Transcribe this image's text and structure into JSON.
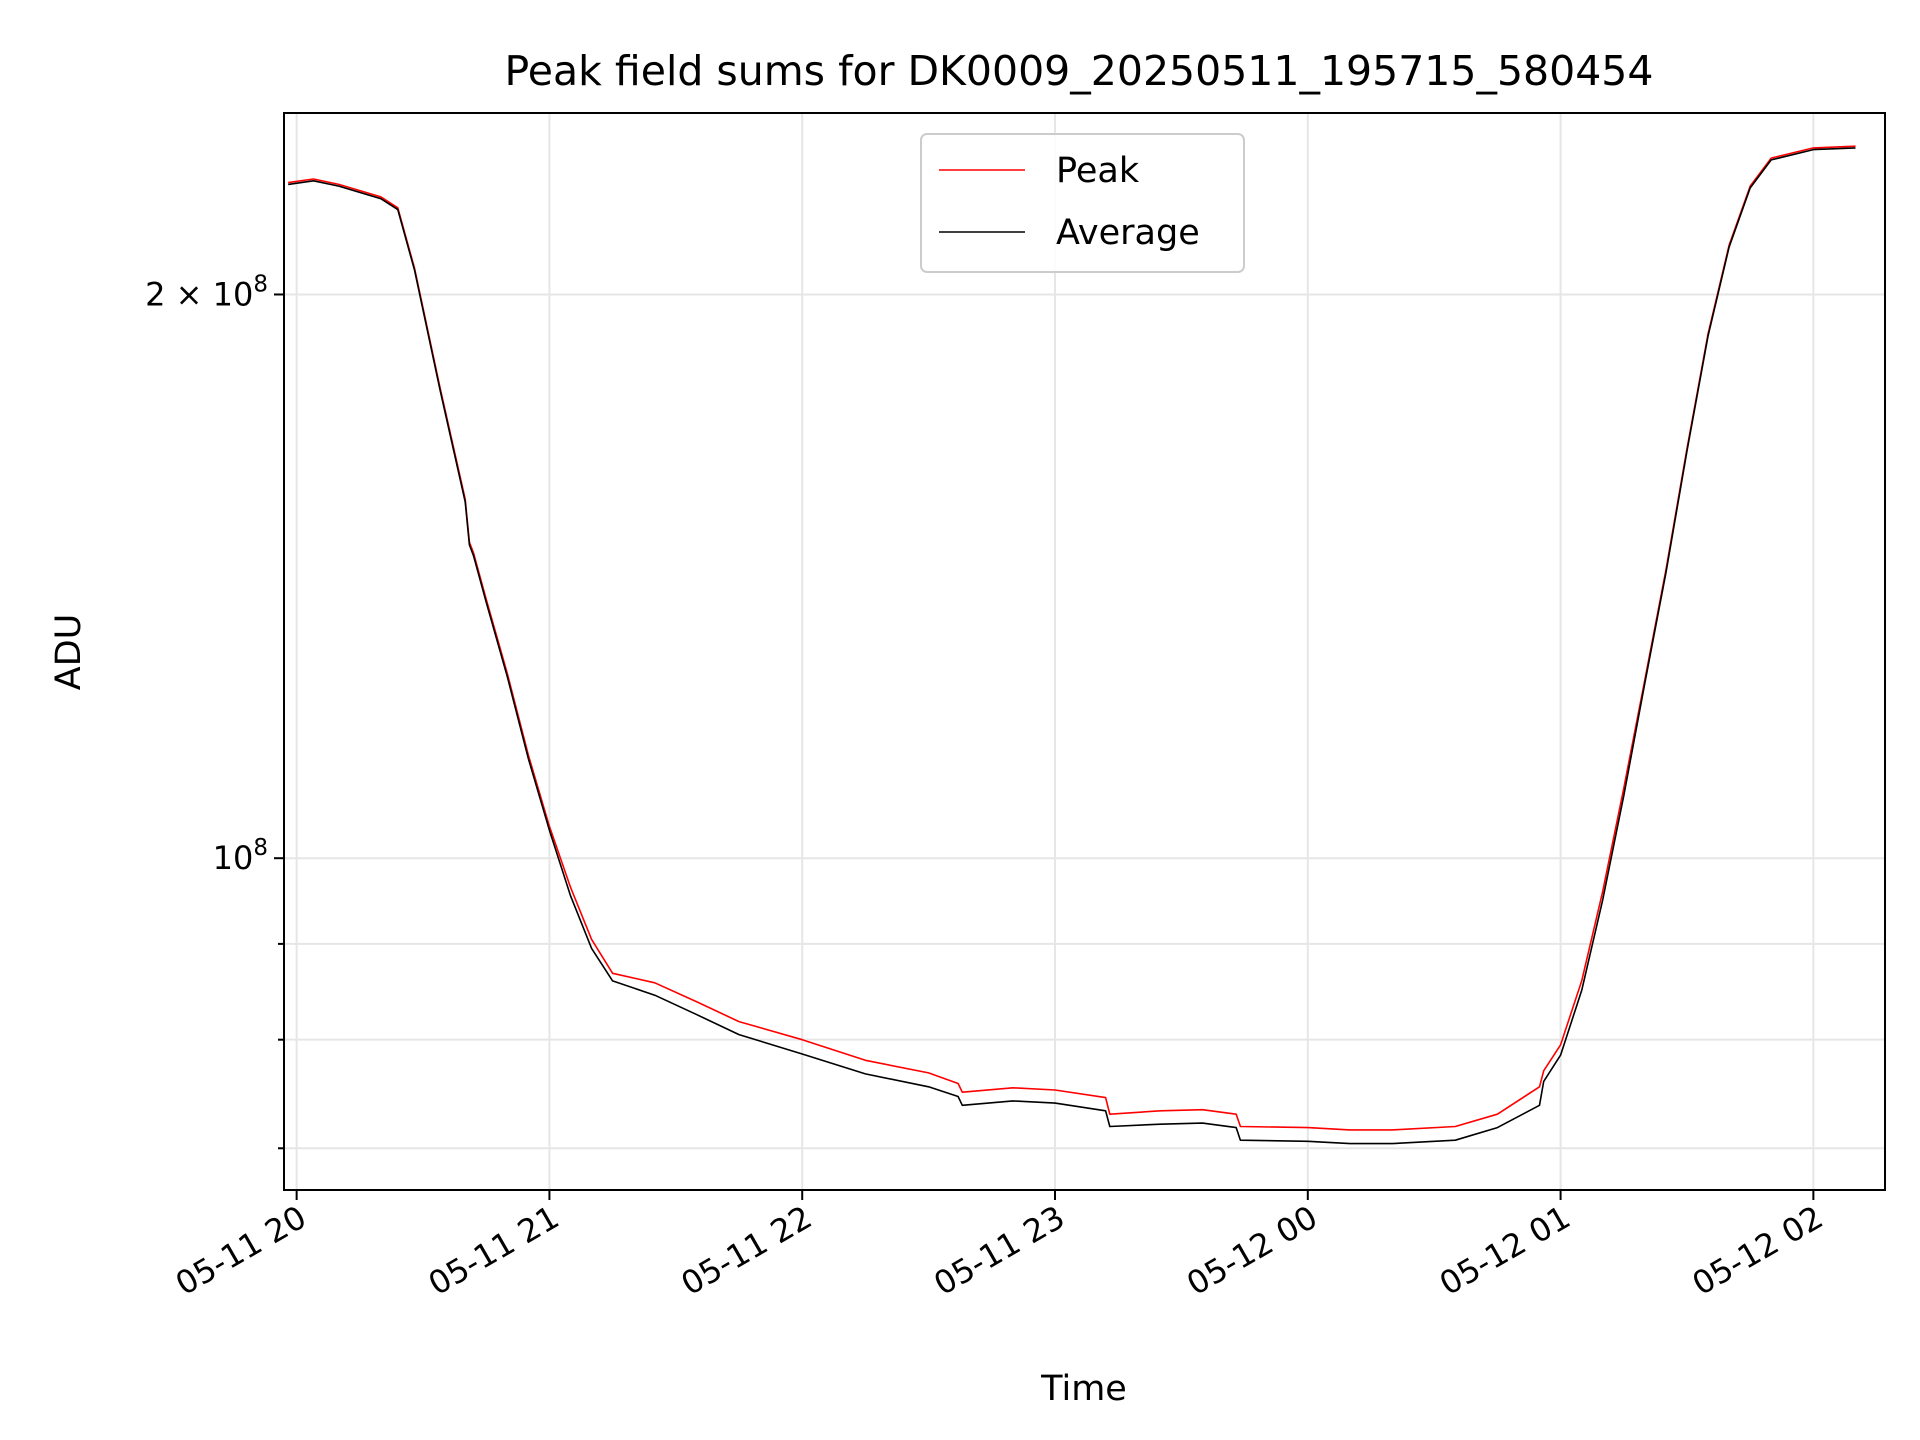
{
  "chart_data": {
    "type": "line",
    "title": "Peak field sums for DK0009_20250511_195715_580454",
    "xlabel": "Time",
    "ylabel": "ADU",
    "y_scale": "log",
    "ylim": [
      66500000,
      250000000
    ],
    "xlim": [
      "2025-05-11 19:57",
      "2025-05-12 02:17"
    ],
    "grid": true,
    "legend_position": "upper center",
    "x_ticks": [
      {
        "t": "2025-05-11 20:00",
        "label": "05-11 20"
      },
      {
        "t": "2025-05-11 21:00",
        "label": "05-11 21"
      },
      {
        "t": "2025-05-11 22:00",
        "label": "05-11 22"
      },
      {
        "t": "2025-05-11 23:00",
        "label": "05-11 23"
      },
      {
        "t": "2025-05-12 00:00",
        "label": "05-12 00"
      },
      {
        "t": "2025-05-12 01:00",
        "label": "05-12 01"
      },
      {
        "t": "2025-05-12 02:00",
        "label": "05-12 02"
      }
    ],
    "y_major_ticks": [
      {
        "value": 100000000,
        "base": "10",
        "exp": "8",
        "coef": ""
      },
      {
        "value": 200000000,
        "base": "10",
        "exp": "8",
        "coef": "2"
      }
    ],
    "y_minor_ticks": [
      70000000,
      80000000,
      90000000
    ],
    "series": [
      {
        "name": "Average",
        "color": "#000000",
        "points": [
          [
            "2025-05-11 19:58",
            229000000
          ],
          [
            "2025-05-11 20:04",
            230000000
          ],
          [
            "2025-05-11 20:10",
            228500000
          ],
          [
            "2025-05-11 20:20",
            225000000
          ],
          [
            "2025-05-11 20:24",
            222000000
          ],
          [
            "2025-05-11 20:28",
            206000000
          ],
          [
            "2025-05-11 20:34",
            178000000
          ],
          [
            "2025-05-11 20:40",
            155000000
          ],
          [
            "2025-05-11 20:41",
            147000000
          ],
          [
            "2025-05-11 20:42",
            145000000
          ],
          [
            "2025-05-11 20:45",
            137000000
          ],
          [
            "2025-05-11 20:50",
            125000000
          ],
          [
            "2025-05-11 20:55",
            113000000
          ],
          [
            "2025-05-11 21:00",
            103500000
          ],
          [
            "2025-05-11 21:05",
            95500000
          ],
          [
            "2025-05-11 21:10",
            89500000
          ],
          [
            "2025-05-11 21:15",
            86000000
          ],
          [
            "2025-05-11 21:25",
            84500000
          ],
          [
            "2025-05-11 21:35",
            82500000
          ],
          [
            "2025-05-11 21:45",
            80500000
          ],
          [
            "2025-05-11 22:00",
            78600000
          ],
          [
            "2025-05-11 22:15",
            76700000
          ],
          [
            "2025-05-11 22:30",
            75500000
          ],
          [
            "2025-05-11 22:37",
            74600000
          ],
          [
            "2025-05-11 22:38",
            73800000
          ],
          [
            "2025-05-11 22:50",
            74200000
          ],
          [
            "2025-05-11 23:00",
            74000000
          ],
          [
            "2025-05-11 23:12",
            73300000
          ],
          [
            "2025-05-11 23:13",
            71900000
          ],
          [
            "2025-05-11 23:25",
            72100000
          ],
          [
            "2025-05-11 23:35",
            72200000
          ],
          [
            "2025-05-11 23:43",
            71800000
          ],
          [
            "2025-05-11 23:44",
            70700000
          ],
          [
            "2025-05-12 00:00",
            70600000
          ],
          [
            "2025-05-12 00:10",
            70400000
          ],
          [
            "2025-05-12 00:20",
            70400000
          ],
          [
            "2025-05-12 00:35",
            70700000
          ],
          [
            "2025-05-12 00:45",
            71800000
          ],
          [
            "2025-05-12 00:55",
            73800000
          ],
          [
            "2025-05-12 00:56",
            76000000
          ],
          [
            "2025-05-12 01:00",
            78500000
          ],
          [
            "2025-05-12 01:05",
            85000000
          ],
          [
            "2025-05-12 01:10",
            95000000
          ],
          [
            "2025-05-12 01:15",
            108000000
          ],
          [
            "2025-05-12 01:20",
            124000000
          ],
          [
            "2025-05-12 01:25",
            142000000
          ],
          [
            "2025-05-12 01:30",
            165000000
          ],
          [
            "2025-05-12 01:35",
            190000000
          ],
          [
            "2025-05-12 01:40",
            212000000
          ],
          [
            "2025-05-12 01:45",
            228000000
          ],
          [
            "2025-05-12 01:50",
            236000000
          ],
          [
            "2025-05-12 02:00",
            239000000
          ],
          [
            "2025-05-12 02:10",
            239500000
          ]
        ]
      },
      {
        "name": "Peak",
        "color": "#ff0000",
        "points": [
          [
            "2025-05-11 19:58",
            229500000
          ],
          [
            "2025-05-11 20:04",
            230500000
          ],
          [
            "2025-05-11 20:10",
            229000000
          ],
          [
            "2025-05-11 20:20",
            225500000
          ],
          [
            "2025-05-11 20:24",
            222500000
          ],
          [
            "2025-05-11 20:28",
            206500000
          ],
          [
            "2025-05-11 20:34",
            178500000
          ],
          [
            "2025-05-11 20:40",
            155500000
          ],
          [
            "2025-05-11 20:41",
            147500000
          ],
          [
            "2025-05-11 20:42",
            145500000
          ],
          [
            "2025-05-11 20:45",
            137500000
          ],
          [
            "2025-05-11 20:50",
            125500000
          ],
          [
            "2025-05-11 20:55",
            113500000
          ],
          [
            "2025-05-11 21:00",
            104000000
          ],
          [
            "2025-05-11 21:05",
            96500000
          ],
          [
            "2025-05-11 21:10",
            90500000
          ],
          [
            "2025-05-11 21:15",
            86800000
          ],
          [
            "2025-05-11 21:25",
            85800000
          ],
          [
            "2025-05-11 21:35",
            83800000
          ],
          [
            "2025-05-11 21:45",
            81800000
          ],
          [
            "2025-05-11 22:00",
            80000000
          ],
          [
            "2025-05-11 22:15",
            78000000
          ],
          [
            "2025-05-11 22:30",
            76800000
          ],
          [
            "2025-05-11 22:37",
            75800000
          ],
          [
            "2025-05-11 22:38",
            75000000
          ],
          [
            "2025-05-11 22:50",
            75400000
          ],
          [
            "2025-05-11 23:00",
            75200000
          ],
          [
            "2025-05-11 23:12",
            74500000
          ],
          [
            "2025-05-11 23:13",
            73000000
          ],
          [
            "2025-05-11 23:25",
            73300000
          ],
          [
            "2025-05-11 23:35",
            73400000
          ],
          [
            "2025-05-11 23:43",
            73000000
          ],
          [
            "2025-05-11 23:44",
            71900000
          ],
          [
            "2025-05-12 00:00",
            71800000
          ],
          [
            "2025-05-12 00:10",
            71600000
          ],
          [
            "2025-05-12 00:20",
            71600000
          ],
          [
            "2025-05-12 00:35",
            71900000
          ],
          [
            "2025-05-12 00:45",
            73000000
          ],
          [
            "2025-05-12 00:55",
            75500000
          ],
          [
            "2025-05-12 00:56",
            77000000
          ],
          [
            "2025-05-12 01:00",
            79500000
          ],
          [
            "2025-05-12 01:05",
            86000000
          ],
          [
            "2025-05-12 01:10",
            96000000
          ],
          [
            "2025-05-12 01:15",
            109000000
          ],
          [
            "2025-05-12 01:20",
            124500000
          ],
          [
            "2025-05-12 01:25",
            142500000
          ],
          [
            "2025-05-12 01:30",
            165500000
          ],
          [
            "2025-05-12 01:35",
            190500000
          ],
          [
            "2025-05-12 01:40",
            212500000
          ],
          [
            "2025-05-12 01:45",
            228500000
          ],
          [
            "2025-05-12 01:50",
            236500000
          ],
          [
            "2025-05-12 02:00",
            239500000
          ],
          [
            "2025-05-12 02:10",
            240000000
          ]
        ]
      }
    ]
  }
}
